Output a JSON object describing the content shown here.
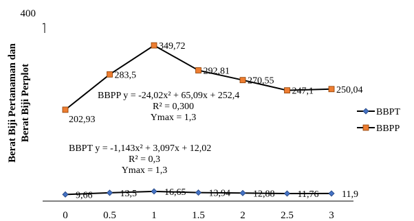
{
  "chart_data": {
    "type": "line",
    "title": "",
    "xlabel": "",
    "ylabel": [
      "Berat Biji Pertanaman dan",
      "Berat Biji Perplot"
    ],
    "x": [
      0,
      0.5,
      1,
      1.5,
      2,
      2.5,
      3
    ],
    "x_tick_labels": [
      "0",
      "0.5",
      "1",
      "1.5",
      "2",
      "2.5",
      "3"
    ],
    "ylim": [
      0,
      400
    ],
    "y_tick_labels": [
      "400"
    ],
    "grid": false,
    "legend_position": "right",
    "series": [
      {
        "name": "BBPT",
        "marker": "diamond",
        "color": "#4472C4",
        "values": [
          9.66,
          13.5,
          16.65,
          13.94,
          12.88,
          11.76,
          11.9
        ],
        "labels": [
          "9,66",
          "13,5",
          "16,65",
          "13,94",
          "12,88",
          "11,76",
          "11,9"
        ],
        "equation": [
          "BBPT y = -1,143x² + 3,097x + 12,02",
          "R² = 0,3",
          "Ymax = 1,3"
        ]
      },
      {
        "name": "BBPP",
        "marker": "square",
        "color": "#ED7D31",
        "values": [
          202.93,
          283.5,
          349.72,
          292.81,
          270.55,
          247.1,
          250.04
        ],
        "labels": [
          "202,93",
          "283,5",
          "349,72",
          "292,81",
          "270,55",
          "247,1",
          "250,04"
        ],
        "equation": [
          "BBPP y = -24,02x² + 65,09x + 252,4",
          "R² = 0,300",
          "Ymax = 1,3"
        ]
      }
    ]
  }
}
